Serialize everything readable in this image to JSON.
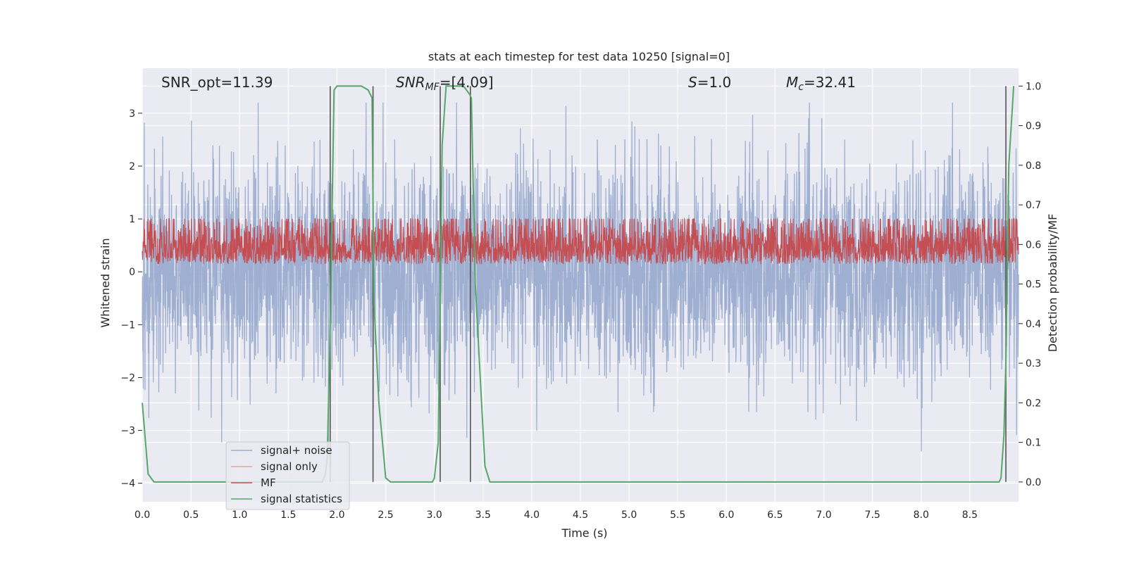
{
  "chart_data": {
    "type": "line",
    "title": "stats at each timestep for test data 10250 [signal=0]",
    "xlabel": "Time (s)",
    "ylabel_left": "Whitened strain",
    "ylabel_right": "Detection probability/MF",
    "xlim": [
      0.0,
      9.0
    ],
    "ylim_left": [
      -4.35,
      3.85
    ],
    "ylim_right": [
      -0.05,
      1.045
    ],
    "x_ticks": [
      "0.0",
      "0.5",
      "1.0",
      "1.5",
      "2.0",
      "2.5",
      "3.0",
      "3.5",
      "4.0",
      "4.5",
      "5.0",
      "5.5",
      "6.0",
      "6.5",
      "7.0",
      "7.5",
      "8.0",
      "8.5"
    ],
    "y_ticks_left": [
      "−4",
      "−3",
      "−2",
      "−1",
      "0",
      "1",
      "2",
      "3"
    ],
    "y_ticks_right": [
      "0.0",
      "0.1",
      "0.2",
      "0.3",
      "0.4",
      "0.5",
      "0.6",
      "0.7",
      "0.8",
      "0.9",
      "1.0"
    ],
    "grid": true,
    "legend_placement": "lower-left",
    "annotations": {
      "snr_opt": "SNR_opt=11.39",
      "snr_mf_main": "SNR",
      "snr_mf_sub": "MF",
      "snr_mf_rest": "=[4.09]",
      "s_main": "S",
      "s_rest": "=1.0",
      "mc_main": "M",
      "mc_sub": "c",
      "mc_rest": "=32.41"
    },
    "vertical_markers_x": [
      1.93,
      2.37,
      3.06,
      3.37,
      8.87
    ],
    "series": [
      {
        "name": "signal+ noise",
        "color": "#9aaccf",
        "axis": "left",
        "style": "noise",
        "x_range": [
          0.0,
          9.0
        ],
        "envelope_mean": 0.0,
        "envelope_sd": 1.0,
        "peak_max": 3.2,
        "peak_min": -3.55
      },
      {
        "name": "signal only",
        "color": "#e8a890",
        "axis": "left",
        "style": "none",
        "values": []
      },
      {
        "name": "MF",
        "color": "#c44e52",
        "axis": "right",
        "style": "noise",
        "x_range": [
          0.0,
          9.0
        ],
        "band_low": 0.55,
        "band_high": 0.66,
        "peak_max": 0.665
      },
      {
        "name": "signal statistics",
        "color": "#55a868",
        "axis": "right",
        "style": "line",
        "x": [
          0.0,
          0.06,
          0.12,
          0.2,
          1.85,
          1.88,
          1.9,
          1.93,
          1.97,
          2.0,
          2.05,
          2.25,
          2.32,
          2.36,
          2.38,
          2.43,
          2.5,
          2.55,
          2.98,
          3.0,
          3.04,
          3.08,
          3.12,
          3.3,
          3.36,
          3.38,
          3.42,
          3.52,
          3.57,
          3.6,
          8.8,
          8.82,
          8.85,
          8.87,
          8.9,
          8.95
        ],
        "y": [
          0.2,
          0.02,
          0.0,
          0.0,
          0.0,
          0.02,
          0.06,
          0.4,
          0.99,
          1.0,
          1.0,
          1.0,
          0.99,
          0.97,
          0.45,
          0.2,
          0.01,
          0.0,
          0.0,
          0.01,
          0.1,
          0.85,
          1.0,
          1.0,
          0.98,
          0.97,
          0.5,
          0.04,
          0.0,
          0.0,
          0.0,
          0.01,
          0.12,
          0.3,
          0.8,
          1.0
        ]
      }
    ]
  }
}
